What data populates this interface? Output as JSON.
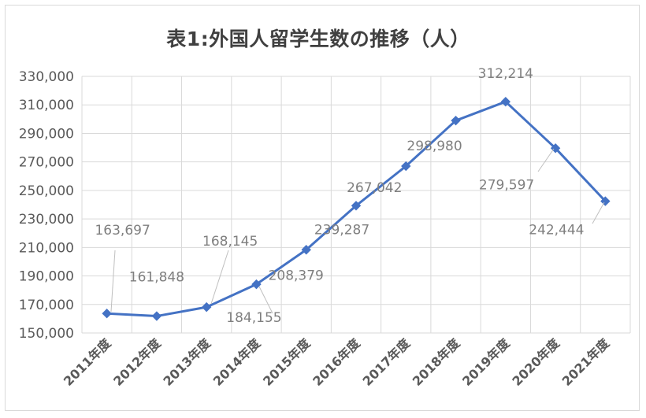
{
  "chart_data": {
    "type": "line",
    "title": "表1:外国人留学生数の推移（人）",
    "categories": [
      "2011年度",
      "2012年度",
      "2013年度",
      "2014年度",
      "2015年度",
      "2016年度",
      "2017年度",
      "2018年度",
      "2019年度",
      "2020年度",
      "2021年度"
    ],
    "series": [
      {
        "values": [
          163697,
          161848,
          168145,
          184155,
          208379,
          239287,
          267042,
          298980,
          312214,
          279597,
          242444
        ],
        "color": "#4472c4"
      }
    ],
    "data_labels": [
      "163,697",
      "161,848",
      "168,145",
      "184,155",
      "208,379",
      "239,287",
      "267,042",
      "298,980",
      "312,214",
      "279,597",
      "242,444"
    ],
    "ylim": [
      150000,
      330000
    ],
    "yticks": [
      "150,000",
      "170,000",
      "190,000",
      "210,000",
      "230,000",
      "250,000",
      "270,000",
      "290,000",
      "310,000",
      "330,000"
    ],
    "grid": {
      "x": true,
      "y": true,
      "color": "#d9d9d9"
    },
    "marker": "diamond",
    "legend": "none"
  }
}
